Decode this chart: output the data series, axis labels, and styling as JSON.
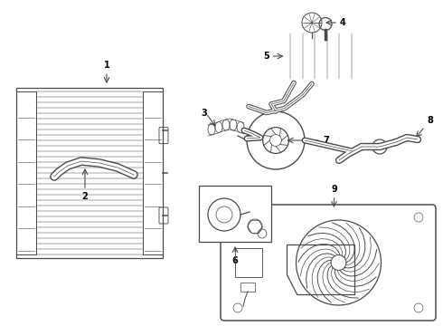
{
  "background_color": "#ffffff",
  "line_color": "#4a4a4a",
  "label_color": "#000000",
  "fig_w": 4.9,
  "fig_h": 3.6,
  "dpi": 100
}
